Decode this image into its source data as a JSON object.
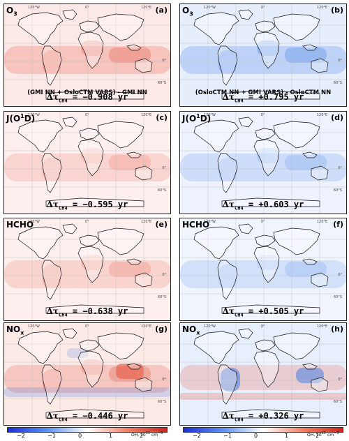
{
  "panels": [
    {
      "id": "a",
      "species": "O",
      "species_sub": "3",
      "species_sup": "",
      "letter": "(a)",
      "note": "(GMI NN + OsloCTM VARS) - GMI NN",
      "dtau_sym": "Δτ",
      "dtau_sub": "CH4",
      "dtau_val": "= −0.908 yr",
      "sign": "pos",
      "intensity": 0.95
    },
    {
      "id": "b",
      "species": "O",
      "species_sub": "3",
      "species_sup": "",
      "letter": "(b)",
      "note": "(OsloCTM NN + GMI VARS) - OsloCTM NN",
      "dtau_sym": "Δτ",
      "dtau_sub": "CH4",
      "dtau_val": "= +0.795 yr",
      "sign": "neg",
      "intensity": 0.95
    },
    {
      "id": "c",
      "species": "J(O",
      "species_sub": "",
      "species_sup": "1",
      "species_tail": "D)",
      "letter": "(c)",
      "note": "",
      "dtau_sym": "Δτ",
      "dtau_sub": "CH4",
      "dtau_val": "= −0.595 yr",
      "sign": "pos",
      "intensity": 0.55
    },
    {
      "id": "d",
      "species": "J(O",
      "species_sub": "",
      "species_sup": "1",
      "species_tail": "D)",
      "letter": "(d)",
      "note": "",
      "dtau_sym": "Δτ",
      "dtau_sub": "CH4",
      "dtau_val": "= +0.603 yr",
      "sign": "neg",
      "intensity": 0.6
    },
    {
      "id": "e",
      "species": "HCHO",
      "species_sub": "",
      "species_sup": "",
      "letter": "(e)",
      "note": "",
      "dtau_sym": "Δτ",
      "dtau_sub": "CH4",
      "dtau_val": "= −0.638 yr",
      "sign": "pos",
      "intensity": 0.6
    },
    {
      "id": "f",
      "species": "HCHO",
      "species_sub": "",
      "species_sup": "",
      "letter": "(f)",
      "note": "",
      "dtau_sym": "Δτ",
      "dtau_sub": "CH4",
      "dtau_val": "= +0.505 yr",
      "sign": "neg",
      "intensity": 0.5
    },
    {
      "id": "g",
      "species": "NO",
      "species_sub": "x",
      "species_sup": "",
      "letter": "(g)",
      "note": "",
      "dtau_sym": "Δτ",
      "dtau_sub": "CH4",
      "dtau_val": "= −0.446 yr",
      "sign": "mix",
      "intensity": 0.9
    },
    {
      "id": "h",
      "species": "NO",
      "species_sub": "x",
      "species_sup": "",
      "letter": "(h)",
      "note": "",
      "dtau_sym": "Δτ",
      "dtau_sub": "CH4",
      "dtau_val": "= +0.326 yr",
      "sign": "mix2",
      "intensity": 0.9
    }
  ],
  "axis_labels": {
    "lon1": "120°W",
    "lon2": "0°",
    "lon3": "120°E",
    "lat1": "0°",
    "lat2": "60°S"
  },
  "colorbar": {
    "ticks": [
      "−2",
      "−1",
      "0",
      "1",
      "2"
    ],
    "unit": "OH, 10",
    "unit_sup": "11",
    "unit_tail": " cm",
    "unit_sup2": "−3",
    "colors": [
      "#1a2fd6",
      "#5f8ff0",
      "#ffffff",
      "#f0806a",
      "#c8281e"
    ]
  }
}
